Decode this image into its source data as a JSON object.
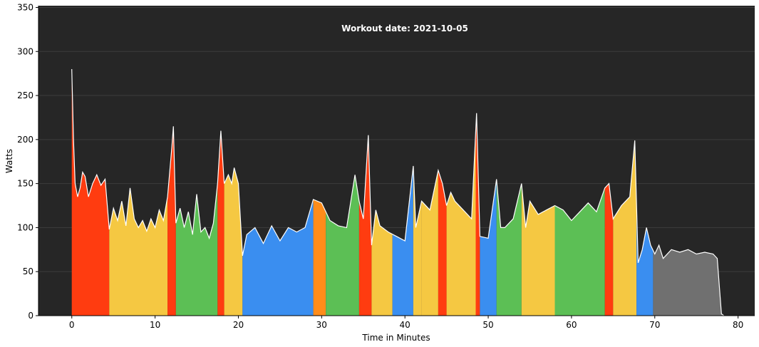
{
  "chart_data": {
    "type": "area",
    "title": "Workout date: 2021-10-05",
    "xlabel": "Time in Minutes",
    "ylabel": "Watts",
    "xlim": [
      -4,
      82
    ],
    "ylim": [
      0,
      352
    ],
    "xticks": [
      0,
      10,
      20,
      30,
      40,
      50,
      60,
      70,
      80
    ],
    "yticks": [
      0,
      50,
      100,
      150,
      200,
      250,
      300,
      350
    ],
    "grid": true,
    "legend": "none",
    "colors": {
      "background": "#262626",
      "grid": "#3c3c3c",
      "line": "#ffffff",
      "zone_red": "#ff3c10",
      "zone_orange": "#ff8c1a",
      "zone_yellow": "#f5c842",
      "zone_green": "#5cbf55",
      "zone_blue": "#3a8ef0",
      "zone_gray": "#707070"
    },
    "series": [
      {
        "x": [
          0,
          0.2,
          0.4,
          0.7,
          1.0,
          1.3,
          1.6,
          2.0,
          2.5,
          3.0,
          3.5,
          4.0,
          4.5,
          5.0,
          5.5,
          6.0,
          6.5,
          7.0,
          7.5,
          8.0,
          8.5,
          9.0,
          9.5,
          10.0,
          10.5,
          11.0,
          11.5,
          12.0,
          12.2,
          12.5,
          13.0,
          13.5,
          14.0,
          14.5,
          15.0,
          15.5,
          16.0,
          16.5,
          17.0,
          17.5,
          17.9,
          18.3,
          18.8,
          19.2,
          19.5,
          20.0,
          20.5,
          21.0,
          22.0,
          23.0,
          24.0,
          25.0,
          26.0,
          27.0,
          28.0,
          29.0,
          30.0,
          31.0,
          32.0,
          33.0,
          34.0,
          34.5,
          35.0,
          35.6,
          36.0,
          36.5,
          37.0,
          38.0,
          39.0,
          40.0,
          41.0,
          41.3,
          42.0,
          43.0,
          44.0,
          44.5,
          45.0,
          45.5,
          46.0,
          47.0,
          48.0,
          48.6,
          49.0,
          50.0,
          51.0,
          51.5,
          52.0,
          53.0,
          54.0,
          54.5,
          55.0,
          56.0,
          57.0,
          58.0,
          59.0,
          60.0,
          61.0,
          62.0,
          63.0,
          64.0,
          64.5,
          65.0,
          66.0,
          67.0,
          67.6,
          68.0,
          68.5,
          69.0,
          69.5,
          70.0,
          70.5,
          71.0,
          72.0,
          73.0,
          74.0,
          75.0,
          76.0,
          77.0,
          77.5,
          78.0,
          78.3
        ],
        "values": [
          280,
          200,
          150,
          135,
          145,
          163,
          158,
          135,
          150,
          160,
          148,
          155,
          98,
          122,
          108,
          130,
          102,
          145,
          110,
          100,
          108,
          96,
          110,
          100,
          120,
          108,
          135,
          190,
          215,
          105,
          122,
          100,
          118,
          92,
          138,
          95,
          100,
          88,
          105,
          150,
          210,
          150,
          160,
          150,
          168,
          150,
          68,
          92,
          100,
          82,
          102,
          85,
          100,
          95,
          100,
          132,
          128,
          108,
          102,
          100,
          160,
          130,
          110,
          205,
          80,
          120,
          102,
          95,
          90,
          85,
          170,
          100,
          130,
          120,
          165,
          150,
          125,
          140,
          130,
          120,
          110,
          230,
          90,
          88,
          155,
          100,
          100,
          110,
          150,
          100,
          130,
          115,
          120,
          125,
          120,
          108,
          118,
          128,
          118,
          145,
          150,
          110,
          125,
          135,
          199,
          60,
          75,
          100,
          80,
          70,
          80,
          65,
          75,
          72,
          75,
          70,
          72,
          70,
          65,
          2,
          0
        ]
      }
    ],
    "zones": [
      {
        "from": 0,
        "to": 4.5,
        "zone": "red"
      },
      {
        "from": 4.5,
        "to": 11.5,
        "zone": "yellow"
      },
      {
        "from": 11.5,
        "to": 12.5,
        "zone": "red"
      },
      {
        "from": 12.5,
        "to": 17.5,
        "zone": "green"
      },
      {
        "from": 17.5,
        "to": 18.3,
        "zone": "red"
      },
      {
        "from": 18.3,
        "to": 20.5,
        "zone": "yellow"
      },
      {
        "from": 20.5,
        "to": 29.0,
        "zone": "blue"
      },
      {
        "from": 29.0,
        "to": 30.5,
        "zone": "orange"
      },
      {
        "from": 30.5,
        "to": 34.5,
        "zone": "green"
      },
      {
        "from": 34.5,
        "to": 36.0,
        "zone": "red"
      },
      {
        "from": 36.0,
        "to": 38.5,
        "zone": "yellow"
      },
      {
        "from": 38.5,
        "to": 41.0,
        "zone": "blue"
      },
      {
        "from": 41.0,
        "to": 42.0,
        "zone": "yellow"
      },
      {
        "from": 42.0,
        "to": 44.0,
        "zone": "yellow"
      },
      {
        "from": 44.0,
        "to": 45.0,
        "zone": "red"
      },
      {
        "from": 45.0,
        "to": 48.5,
        "zone": "yellow"
      },
      {
        "from": 48.5,
        "to": 49.0,
        "zone": "red"
      },
      {
        "from": 49.0,
        "to": 51.0,
        "zone": "blue"
      },
      {
        "from": 51.0,
        "to": 54.0,
        "zone": "green"
      },
      {
        "from": 54.0,
        "to": 58.0,
        "zone": "yellow"
      },
      {
        "from": 58.0,
        "to": 64.0,
        "zone": "green"
      },
      {
        "from": 64.0,
        "to": 65.0,
        "zone": "red"
      },
      {
        "from": 65.0,
        "to": 67.8,
        "zone": "yellow"
      },
      {
        "from": 67.8,
        "to": 69.8,
        "zone": "blue"
      },
      {
        "from": 69.8,
        "to": 78.3,
        "zone": "gray"
      }
    ]
  }
}
